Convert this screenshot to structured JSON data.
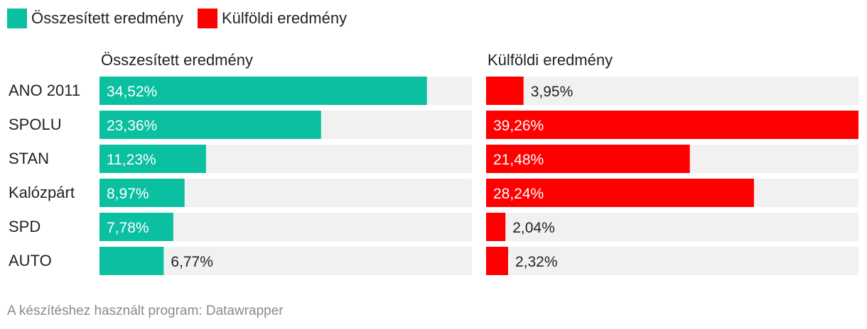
{
  "legend": [
    {
      "label": "Összesített eredmény",
      "color": "#0bbfa1"
    },
    {
      "label": "Külföldi eredmény",
      "color": "#ff0000"
    }
  ],
  "footer": "A készítéshez használt program: Datawrapper",
  "chart_data": {
    "type": "bar",
    "orientation": "horizontal",
    "categories": [
      "ANO 2011",
      "SPOLU",
      "STAN",
      "Kalózpárt",
      "SPD",
      "AUTO"
    ],
    "xlim": [
      0,
      39.26
    ],
    "grid": false,
    "series": [
      {
        "name": "Összesített eredmény",
        "color": "#0bbfa1",
        "values": [
          34.52,
          23.36,
          11.23,
          8.97,
          7.78,
          6.77
        ],
        "labels": [
          "34,52%",
          "23,36%",
          "11,23%",
          "8,97%",
          "7,78%",
          "6,77%"
        ]
      },
      {
        "name": "Külföldi eredmény",
        "color": "#ff0000",
        "values": [
          3.95,
          39.26,
          21.48,
          28.24,
          2.04,
          2.32
        ],
        "labels": [
          "3,95%",
          "39,26%",
          "21,48%",
          "28,24%",
          "2,04%",
          "2,32%"
        ]
      }
    ]
  }
}
